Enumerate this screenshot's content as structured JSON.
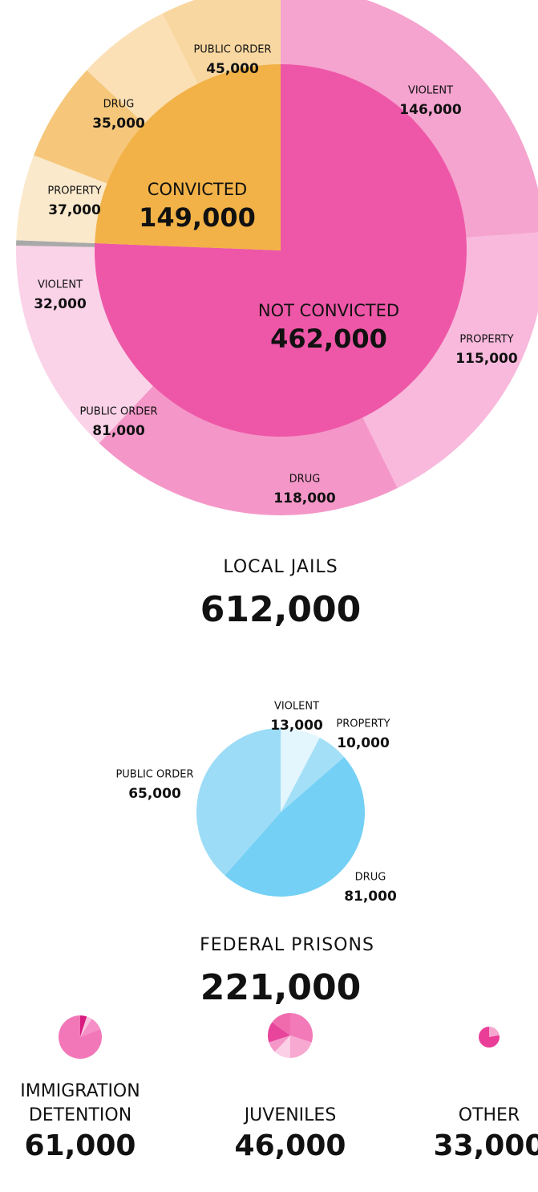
{
  "chart_data": [
    {
      "type": "sunburst",
      "title": "LOCAL JAILS",
      "total": "612,000",
      "groups": [
        {
          "name": "NOT CONVICTED",
          "value": 462000,
          "value_label": "462,000",
          "color": "#ee57a7",
          "categories": [
            "VIOLENT",
            "PROPERTY",
            "DRUG",
            "PUBLIC ORDER",
            null
          ],
          "values": [
            146000,
            115000,
            118000,
            81000,
            2000
          ],
          "value_labels": [
            "146,000",
            "115,000",
            "118,000",
            "81,000",
            null
          ],
          "colors": [
            "#f5a3cf",
            "#f8b9dc",
            "#f497c8",
            "#fbd3e8",
            "#a9a9a9"
          ]
        },
        {
          "name": "CONVICTED",
          "value": 149000,
          "value_label": "149,000",
          "color": "#f2b247",
          "categories": [
            "VIOLENT",
            "PROPERTY",
            "DRUG",
            "PUBLIC ORDER"
          ],
          "values": [
            32000,
            37000,
            35000,
            45000
          ],
          "value_labels": [
            "32,000",
            "37,000",
            "35,000",
            "45,000"
          ],
          "colors": [
            "#fbe9cc",
            "#f6c77a",
            "#fbe0b6",
            "#f9d7a1"
          ]
        }
      ]
    },
    {
      "type": "pie",
      "title": "FEDERAL PRISONS",
      "total": "221,000",
      "categories": [
        "VIOLENT",
        "PROPERTY",
        "DRUG",
        "PUBLIC ORDER"
      ],
      "values": [
        13000,
        10000,
        81000,
        65000
      ],
      "value_labels": [
        "13,000",
        "10,000",
        "81,000",
        "65,000"
      ],
      "colors": [
        "#e3f5fd",
        "#a3e0f8",
        "#74d0f4",
        "#9cdcf7"
      ]
    },
    {
      "type": "pie",
      "title": "IMMIGRATION DETENTION",
      "total": "61,000",
      "values": [
        5,
        4,
        10,
        81
      ],
      "colors": [
        "#d81b7f",
        "#f9c0de",
        "#f58fc6",
        "#f277b9"
      ]
    },
    {
      "type": "pie",
      "title": "JUVENILES",
      "total": "46,000",
      "values": [
        30,
        20,
        12,
        8,
        15,
        15
      ],
      "colors": [
        "#f27ab8",
        "#f7a9d1",
        "#fbd0e6",
        "#f597c8",
        "#e8449b",
        "#f06aae"
      ]
    },
    {
      "type": "pie",
      "title": "OTHER",
      "total": "33,000",
      "values": [
        22,
        78
      ],
      "colors": [
        "#f6a7cf",
        "#ea3d97"
      ]
    }
  ]
}
